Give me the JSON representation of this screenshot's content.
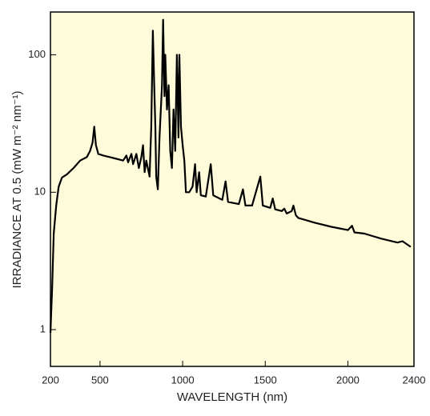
{
  "chart_data": {
    "type": "line",
    "xlabel": "WAVELENGTH (nm)",
    "ylabel": "IRRADIANCE AT 0.5 (mW m⁻² nm⁻¹)",
    "color": "#000000",
    "background": "#fdfbd9",
    "yscale": "log",
    "xlim": [
      200,
      2400
    ],
    "ylim": [
      0.54,
      205
    ],
    "xticks": [
      200,
      500,
      1000,
      1500,
      2000,
      2400
    ],
    "yticks": [
      1,
      10,
      100
    ],
    "x": [
      200,
      210,
      220,
      235,
      250,
      270,
      300,
      340,
      380,
      420,
      440,
      455,
      465,
      475,
      490,
      520,
      560,
      600,
      640,
      660,
      670,
      690,
      700,
      720,
      735,
      750,
      760,
      770,
      780,
      800,
      810,
      820,
      828,
      835,
      840,
      850,
      860,
      875,
      882,
      890,
      895,
      905,
      915,
      925,
      935,
      945,
      955,
      965,
      975,
      980,
      990,
      1000,
      1010,
      1020,
      1040,
      1060,
      1075,
      1085,
      1100,
      1110,
      1140,
      1170,
      1185,
      1240,
      1260,
      1275,
      1340,
      1365,
      1380,
      1420,
      1470,
      1485,
      1530,
      1545,
      1560,
      1600,
      1615,
      1630,
      1660,
      1670,
      1685,
      1700,
      1800,
      1900,
      2000,
      2025,
      2040,
      2100,
      2200,
      2300,
      2330,
      2380
    ],
    "values": [
      0.95,
      2,
      5,
      8,
      11,
      12.8,
      13.5,
      15,
      17,
      18,
      20,
      23,
      30,
      22,
      19,
      18.5,
      18,
      17.5,
      17,
      18.5,
      16.5,
      19,
      16,
      19,
      15,
      18,
      22,
      14,
      17,
      13,
      30,
      150,
      60,
      30,
      13,
      10.5,
      25,
      60,
      180,
      50,
      100,
      40,
      60,
      20,
      15,
      40,
      20,
      100,
      25,
      100,
      30,
      22,
      17,
      10,
      10,
      11,
      16,
      10,
      14,
      9.5,
      9.3,
      16,
      9.5,
      8.8,
      12,
      8.5,
      8.2,
      10.5,
      8,
      8,
      13,
      8,
      7.7,
      9,
      7.5,
      7.3,
      7.6,
      7.0,
      7.3,
      8,
      6.8,
      6.5,
      6,
      5.6,
      5.3,
      5.7,
      5.1,
      5,
      4.6,
      4.3,
      4.4,
      4.0
    ]
  }
}
